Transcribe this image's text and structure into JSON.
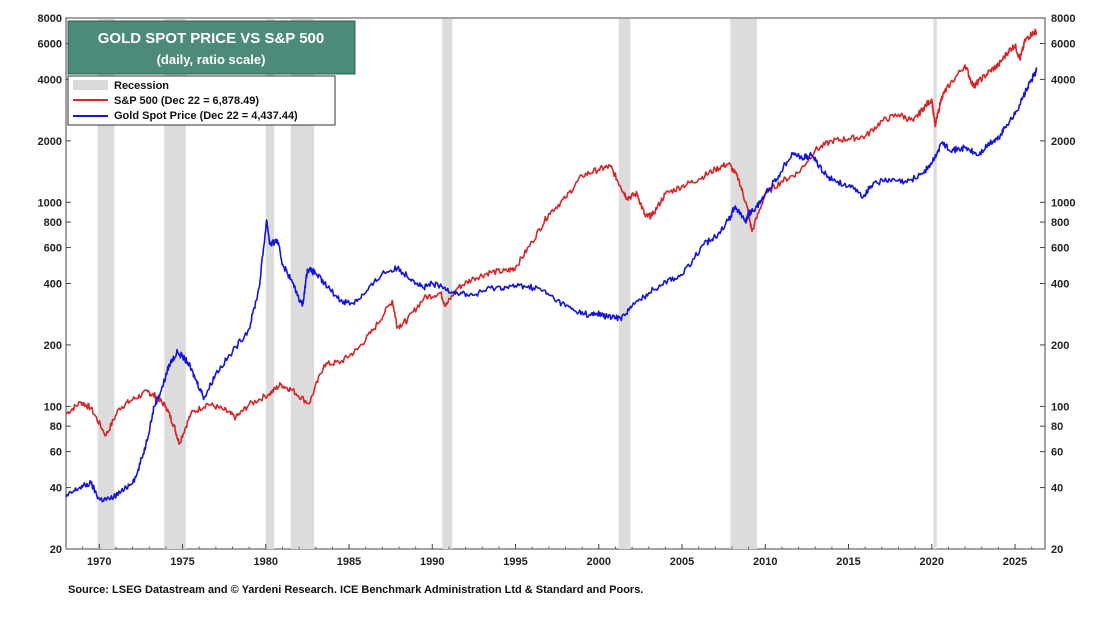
{
  "chart_data": {
    "type": "line",
    "title": "GOLD SPOT PRICE VS S&P 500",
    "subtitle": "(daily, ratio scale)",
    "source": "Source: LSEG Datastream and © Yardeni Research. ICE Benchmark Administration Ltd & Standard and Poors.",
    "y_scale": "log",
    "ylim": [
      20,
      8000
    ],
    "xlim": [
      1968.0,
      2026.8
    ],
    "y_ticks": [
      20,
      40,
      60,
      80,
      100,
      200,
      400,
      600,
      800,
      1000,
      2000,
      4000,
      6000,
      8000
    ],
    "y_tick_labels": [
      "20",
      "40",
      "60",
      "80",
      "100",
      "200",
      "400",
      "600",
      "800",
      "1000",
      "2000",
      "4000",
      "6000",
      "8000"
    ],
    "x_ticks": [
      1970,
      1975,
      1980,
      1985,
      1990,
      1995,
      2000,
      2005,
      2010,
      2015,
      2020,
      2025
    ],
    "x_tick_labels": [
      "1970",
      "1975",
      "1980",
      "1985",
      "1990",
      "1995",
      "2000",
      "2005",
      "2010",
      "2015",
      "2020",
      "2025"
    ],
    "legend_position": "top-left",
    "legend": {
      "recession": "Recession",
      "sp500": "S&P 500 (Dec 22 = 6,878.49)",
      "gold": "Gold Spot Price (Dec 22 = 4,437.44)"
    },
    "recessions": [
      [
        1969.9,
        1970.9
      ],
      [
        1973.9,
        1975.2
      ],
      [
        1980.0,
        1980.5
      ],
      [
        1981.5,
        1982.9
      ],
      [
        1990.6,
        1991.2
      ],
      [
        2001.2,
        2001.9
      ],
      [
        2007.9,
        2009.5
      ],
      [
        2020.1,
        2020.3
      ]
    ],
    "series": [
      {
        "name": "S&P 500",
        "color": "#d62728",
        "x": [
          1968.0,
          1968.9,
          1969.5,
          1970.4,
          1971.2,
          1972.0,
          1972.9,
          1973.4,
          1974.0,
          1974.5,
          1974.8,
          1975.5,
          1976.5,
          1977.5,
          1978.2,
          1979.0,
          1980.2,
          1980.9,
          1981.6,
          1982.6,
          1983.5,
          1984.5,
          1985.5,
          1986.5,
          1987.6,
          1987.9,
          1988.5,
          1989.5,
          1990.5,
          1990.8,
          1991.5,
          1992.5,
          1993.5,
          1994.5,
          1995.0,
          1996.0,
          1997.0,
          1998.0,
          1999.0,
          2000.0,
          2000.7,
          2001.3,
          2001.7,
          2002.3,
          2002.8,
          2003.2,
          2004.0,
          2005.0,
          2006.0,
          2007.0,
          2007.8,
          2008.4,
          2008.9,
          2009.2,
          2010.0,
          2011.0,
          2012.0,
          2013.0,
          2014.0,
          2015.0,
          2016.0,
          2017.0,
          2018.0,
          2018.9,
          2019.5,
          2020.0,
          2020.2,
          2020.6,
          2021.0,
          2022.0,
          2022.5,
          2022.8,
          2023.5,
          2024.0,
          2024.6,
          2025.0,
          2025.3,
          2025.6,
          2026.0,
          2026.3
        ],
        "values": [
          92,
          105,
          98,
          72,
          98,
          108,
          118,
          112,
          100,
          80,
          66,
          92,
          103,
          96,
          88,
          102,
          115,
          128,
          120,
          103,
          160,
          165,
          190,
          240,
          330,
          245,
          265,
          340,
          360,
          310,
          380,
          425,
          455,
          460,
          480,
          640,
          880,
          1050,
          1350,
          1450,
          1500,
          1200,
          1050,
          1100,
          850,
          860,
          1100,
          1200,
          1300,
          1450,
          1550,
          1300,
          950,
          720,
          1100,
          1270,
          1400,
          1800,
          2000,
          2050,
          2100,
          2500,
          2700,
          2500,
          2900,
          3200,
          2350,
          3300,
          3700,
          4700,
          3700,
          3900,
          4400,
          4700,
          5500,
          5900,
          5000,
          6200,
          6700,
          6880
        ]
      },
      {
        "name": "Gold Spot Price",
        "color": "#1515d8",
        "x": [
          1968.0,
          1968.8,
          1969.5,
          1970.0,
          1970.6,
          1971.5,
          1972.2,
          1972.8,
          1973.3,
          1973.8,
          1974.2,
          1974.7,
          1975.3,
          1975.8,
          1976.3,
          1977.0,
          1978.0,
          1979.0,
          1979.6,
          1980.05,
          1980.25,
          1980.7,
          1981.0,
          1981.5,
          1982.2,
          1982.5,
          1983.0,
          1983.5,
          1984.5,
          1985.2,
          1986.0,
          1987.0,
          1987.9,
          1988.8,
          1989.5,
          1990.0,
          1990.7,
          1991.5,
          1992.5,
          1993.5,
          1994.5,
          1995.5,
          1996.5,
          1997.5,
          1998.5,
          1999.5,
          1999.9,
          2000.5,
          2001.3,
          2002.0,
          2003.0,
          2004.0,
          2005.0,
          2006.3,
          2007.0,
          2007.8,
          2008.2,
          2008.8,
          2009.0,
          2009.5,
          2010.0,
          2010.8,
          2011.6,
          2012.2,
          2012.8,
          2013.5,
          2014.0,
          2015.0,
          2015.9,
          2016.5,
          2017.5,
          2018.5,
          2019.5,
          2020.0,
          2020.6,
          2021.3,
          2022.0,
          2022.8,
          2023.5,
          2024.0,
          2024.5,
          2025.0,
          2025.5,
          2026.0,
          2026.3
        ],
        "values": [
          36,
          40,
          42,
          35,
          35,
          39,
          45,
          65,
          100,
          125,
          160,
          185,
          165,
          135,
          110,
          145,
          185,
          240,
          380,
          820,
          620,
          650,
          500,
          420,
          310,
          470,
          450,
          400,
          330,
          320,
          360,
          450,
          475,
          420,
          380,
          400,
          380,
          360,
          350,
          380,
          385,
          390,
          375,
          330,
          295,
          280,
          285,
          275,
          270,
          310,
          360,
          410,
          440,
          620,
          680,
          820,
          960,
          800,
          880,
          950,
          1100,
          1350,
          1750,
          1650,
          1700,
          1400,
          1300,
          1200,
          1070,
          1250,
          1280,
          1250,
          1400,
          1550,
          1950,
          1800,
          1850,
          1700,
          1950,
          2050,
          2400,
          2700,
          3300,
          4000,
          4437
        ]
      }
    ]
  }
}
